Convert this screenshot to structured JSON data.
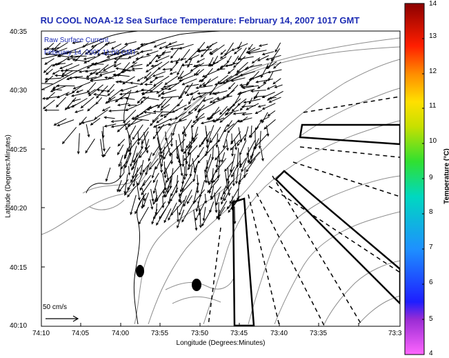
{
  "title": "RU COOL  NOAA-12  Sea Surface Temperature:  February 14, 2007 1017 GMT",
  "axes": {
    "xlabel": "Longitude (Degrees:Minutes)",
    "ylabel": "Latitude (Degrees:Minutes)",
    "x_ticks": [
      "74:10",
      "74:05",
      "74:00",
      "73:55",
      "73:50",
      "73:45",
      "73:40",
      "73:35",
      "73:3"
    ],
    "y_ticks": [
      "40:35",
      "40:30",
      "40:25",
      "40:20",
      "40:15",
      "40:10"
    ]
  },
  "annotations": {
    "layer_name": "Raw Surface Current",
    "layer_time": "February 14, 2007 11:00 GMT",
    "scale_label": "50 cm/s"
  },
  "colorbar": {
    "label": "Temperature (°C)",
    "ticks": [
      "14",
      "13",
      "12",
      "11",
      "10",
      "9",
      "8",
      "7",
      "6",
      "5",
      "4"
    ],
    "min": 4,
    "max": 14
  },
  "colors": {
    "title": "#1e2db4",
    "frame": "#000000",
    "contour": "#8c8c8c"
  }
}
